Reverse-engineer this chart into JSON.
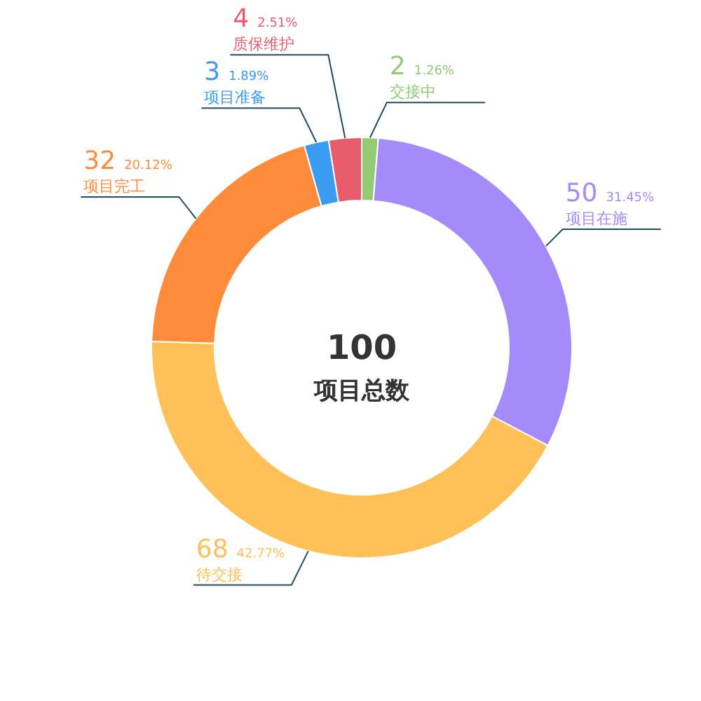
{
  "chart_data": {
    "type": "donut",
    "categories": [
      "交接中",
      "项目在施",
      "待交接",
      "项目完工",
      "项目准备",
      "质保维护"
    ],
    "values": [
      2,
      50,
      68,
      32,
      3,
      4
    ],
    "colors": [
      "#91cc75",
      "#a58bfa",
      "#ffc057",
      "#ff8c3a",
      "#3a9cf0",
      "#e85c6d"
    ],
    "value_labels": [
      "2 1.26%",
      "50 31.45%",
      "68 42.77%",
      "32 20.12%",
      "3 1.89%",
      "4 2.51%"
    ],
    "annotations": [
      "100",
      "项目总数"
    ]
  }
}
